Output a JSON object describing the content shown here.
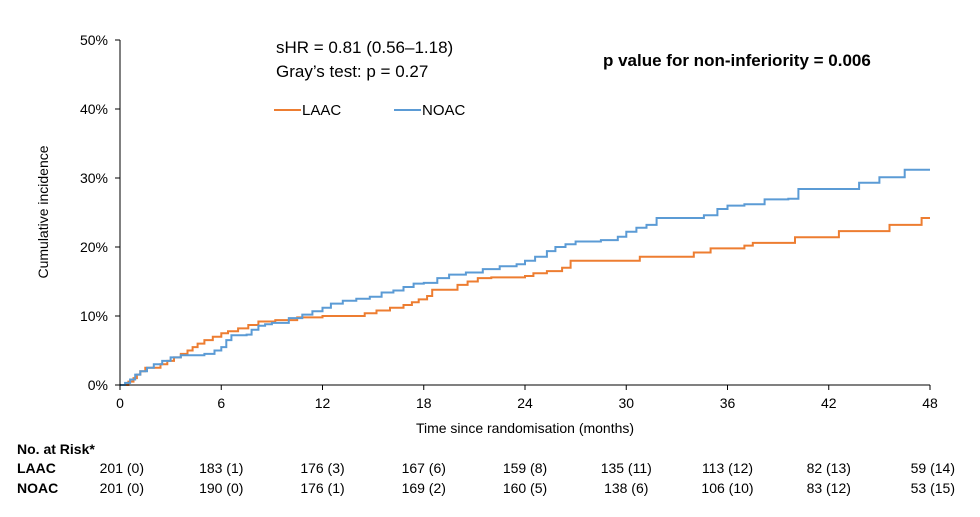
{
  "chart_data": {
    "type": "line",
    "title": "",
    "xlabel": "Time since randomisation (months)",
    "ylabel": "Cumulative incidence",
    "xlim": [
      0,
      48
    ],
    "ylim": [
      0,
      50
    ],
    "x_ticks": [
      "0",
      "6",
      "12",
      "18",
      "24",
      "30",
      "36",
      "42",
      "48"
    ],
    "y_ticks": [
      "0%",
      "10%",
      "20%",
      "30%",
      "40%",
      "50%"
    ],
    "grid": false,
    "annotations": {
      "shr": "sHR = 0.81 (0.56–1.18)",
      "gray": "Gray’s test: p = 0.27",
      "pvalue": "p value for non-inferiority = 0.006"
    },
    "legend": {
      "position": "top-left",
      "items": [
        "LAAC",
        "NOAC"
      ]
    },
    "series": [
      {
        "name": "LAAC",
        "color": "#ED7D31",
        "points": [
          [
            0,
            0
          ],
          [
            0.5,
            0.5
          ],
          [
            0.8,
            1.0
          ],
          [
            1.0,
            1.5
          ],
          [
            1.2,
            2.0
          ],
          [
            1.5,
            2.5
          ],
          [
            2.0,
            2.5
          ],
          [
            2.4,
            3.0
          ],
          [
            2.8,
            3.5
          ],
          [
            3.2,
            4.0
          ],
          [
            3.6,
            4.5
          ],
          [
            4.0,
            5.0
          ],
          [
            4.3,
            5.5
          ],
          [
            4.6,
            6.0
          ],
          [
            5.0,
            6.5
          ],
          [
            5.5,
            7.0
          ],
          [
            6.0,
            7.5
          ],
          [
            6.4,
            7.8
          ],
          [
            7.0,
            8.2
          ],
          [
            7.6,
            8.7
          ],
          [
            8.2,
            9.2
          ],
          [
            9.2,
            9.4
          ],
          [
            10.5,
            9.8
          ],
          [
            12.0,
            10.0
          ],
          [
            13.5,
            10.0
          ],
          [
            14.5,
            10.4
          ],
          [
            15.2,
            10.8
          ],
          [
            16.0,
            11.2
          ],
          [
            16.8,
            11.6
          ],
          [
            17.3,
            12.0
          ],
          [
            17.7,
            12.4
          ],
          [
            18.2,
            12.9
          ],
          [
            18.5,
            13.8
          ],
          [
            20.0,
            14.5
          ],
          [
            20.6,
            15.0
          ],
          [
            21.2,
            15.5
          ],
          [
            22.0,
            15.6
          ],
          [
            24.0,
            15.8
          ],
          [
            24.5,
            16.2
          ],
          [
            25.3,
            16.5
          ],
          [
            26.2,
            17.0
          ],
          [
            26.7,
            18.0
          ],
          [
            28.0,
            18.0
          ],
          [
            30.0,
            18.0
          ],
          [
            30.8,
            18.6
          ],
          [
            33.0,
            18.6
          ],
          [
            34.0,
            19.2
          ],
          [
            35.0,
            19.8
          ],
          [
            37.0,
            20.2
          ],
          [
            37.5,
            20.6
          ],
          [
            39.0,
            20.6
          ],
          [
            40.0,
            21.4
          ],
          [
            42.0,
            21.4
          ],
          [
            42.6,
            22.3
          ],
          [
            44.0,
            22.3
          ],
          [
            45.0,
            22.3
          ],
          [
            45.6,
            23.2
          ],
          [
            46.8,
            23.2
          ],
          [
            47.5,
            24.2
          ],
          [
            48.0,
            24.2
          ]
        ]
      },
      {
        "name": "NOAC",
        "color": "#5B9BD5",
        "points": [
          [
            0,
            0
          ],
          [
            0.3,
            0.3
          ],
          [
            0.6,
            0.8
          ],
          [
            0.9,
            1.5
          ],
          [
            1.2,
            2.0
          ],
          [
            1.6,
            2.5
          ],
          [
            2.0,
            3.0
          ],
          [
            2.5,
            3.5
          ],
          [
            3.0,
            4.0
          ],
          [
            3.6,
            4.3
          ],
          [
            4.2,
            4.3
          ],
          [
            5.0,
            4.5
          ],
          [
            5.6,
            5.0
          ],
          [
            6.0,
            5.5
          ],
          [
            6.3,
            6.5
          ],
          [
            6.6,
            7.2
          ],
          [
            7.5,
            7.3
          ],
          [
            7.8,
            8.0
          ],
          [
            8.2,
            8.6
          ],
          [
            8.6,
            8.8
          ],
          [
            9.0,
            9.0
          ],
          [
            10.0,
            9.7
          ],
          [
            10.8,
            10.2
          ],
          [
            11.4,
            10.7
          ],
          [
            12.0,
            11.2
          ],
          [
            12.5,
            11.8
          ],
          [
            13.2,
            12.2
          ],
          [
            14.0,
            12.5
          ],
          [
            14.8,
            12.8
          ],
          [
            15.5,
            13.4
          ],
          [
            16.2,
            13.7
          ],
          [
            16.8,
            14.2
          ],
          [
            17.4,
            14.7
          ],
          [
            18.0,
            14.8
          ],
          [
            18.8,
            15.5
          ],
          [
            19.5,
            16.0
          ],
          [
            20.5,
            16.3
          ],
          [
            21.5,
            16.8
          ],
          [
            22.5,
            17.2
          ],
          [
            23.5,
            17.5
          ],
          [
            24.0,
            18.0
          ],
          [
            24.6,
            18.6
          ],
          [
            25.3,
            19.4
          ],
          [
            25.8,
            20.0
          ],
          [
            26.4,
            20.4
          ],
          [
            27.0,
            20.8
          ],
          [
            28.5,
            21.0
          ],
          [
            29.5,
            21.5
          ],
          [
            30.0,
            22.2
          ],
          [
            30.6,
            22.8
          ],
          [
            31.2,
            23.2
          ],
          [
            31.8,
            24.2
          ],
          [
            33.0,
            24.2
          ],
          [
            34.6,
            24.6
          ],
          [
            35.4,
            25.5
          ],
          [
            36.0,
            26.0
          ],
          [
            37.0,
            26.2
          ],
          [
            38.2,
            26.9
          ],
          [
            39.6,
            27.0
          ],
          [
            40.2,
            28.4
          ],
          [
            42.0,
            28.4
          ],
          [
            43.8,
            29.3
          ],
          [
            45.0,
            30.1
          ],
          [
            46.5,
            31.2
          ],
          [
            48.0,
            31.2
          ]
        ]
      }
    ],
    "risk_table": {
      "header": "No. at Risk*",
      "rows": [
        {
          "label": "LAAC",
          "values": [
            "201 (0)",
            "183 (1)",
            "176 (3)",
            "167 (6)",
            "159 (8)",
            "135 (11)",
            "113 (12)",
            "82 (13)",
            "59 (14)"
          ]
        },
        {
          "label": "NOAC",
          "values": [
            "201 (0)",
            "190 (0)",
            "176 (1)",
            "169 (2)",
            "160 (5)",
            "138 (6)",
            "106 (10)",
            "83 (12)",
            "53 (15)"
          ]
        }
      ]
    }
  }
}
